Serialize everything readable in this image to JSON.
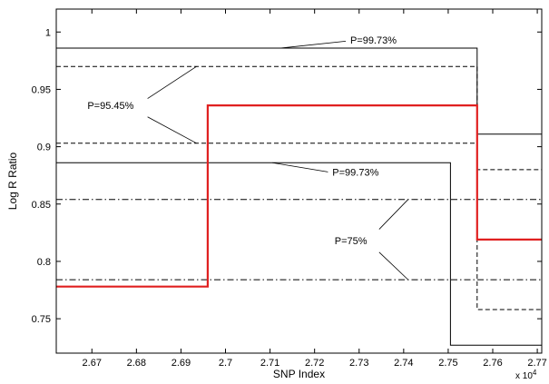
{
  "chart_data": {
    "type": "line",
    "title": "",
    "xlabel": "SNP Index",
    "ylabel": "Log R Ratio",
    "x_multiplier_label": "x 10",
    "x_multiplier_exponent": "4",
    "xlim": [
      26620,
      27710
    ],
    "ylim": [
      0.72,
      1.02
    ],
    "x_ticks": [
      26700,
      26800,
      26900,
      27000,
      27100,
      27200,
      27300,
      27400,
      27500,
      27600,
      27700
    ],
    "x_tick_labels": [
      "2.67",
      "2.68",
      "2.69",
      "2.7",
      "2.71",
      "2.72",
      "2.73",
      "2.74",
      "2.75",
      "2.76",
      "2.77"
    ],
    "y_ticks": [
      0.75,
      0.8,
      0.85,
      0.9,
      0.95,
      1.0
    ],
    "y_tick_labels": [
      "0.75",
      "0.8",
      "0.85",
      "0.9",
      "0.95",
      "1"
    ],
    "grid": false,
    "series": [
      {
        "style": "thick-red",
        "color": "#e02020",
        "points": [
          [
            26620,
            0.778
          ],
          [
            26960,
            0.778
          ],
          [
            26960,
            0.936
          ],
          [
            27565,
            0.936
          ],
          [
            27565,
            0.819
          ],
          [
            27710,
            0.819
          ]
        ]
      },
      {
        "style": "solid",
        "color": "#000000",
        "points": [
          [
            26620,
            0.986
          ],
          [
            27565,
            0.986
          ],
          [
            27565,
            0.911
          ],
          [
            27710,
            0.911
          ]
        ]
      },
      {
        "style": "dashed",
        "color": "#000000",
        "points": [
          [
            26620,
            0.97
          ],
          [
            27565,
            0.97
          ],
          [
            27565,
            0.88
          ],
          [
            27710,
            0.88
          ]
        ]
      },
      {
        "style": "dashed",
        "color": "#000000",
        "points": [
          [
            26620,
            0.903
          ],
          [
            27565,
            0.903
          ],
          [
            27565,
            0.758
          ],
          [
            27710,
            0.758
          ]
        ]
      },
      {
        "style": "solid",
        "color": "#000000",
        "points": [
          [
            26620,
            0.886
          ],
          [
            27505,
            0.886
          ],
          [
            27505,
            0.727
          ],
          [
            27710,
            0.727
          ]
        ]
      },
      {
        "style": "dashdot",
        "color": "#000000",
        "points": [
          [
            26620,
            0.854
          ],
          [
            27710,
            0.854
          ]
        ]
      },
      {
        "style": "dashdot",
        "color": "#000000",
        "points": [
          [
            26620,
            0.784
          ],
          [
            27710,
            0.784
          ]
        ]
      }
    ],
    "annotations": [
      {
        "text": "P=99.73%",
        "text_x": 27280,
        "text_y": 0.993,
        "anchor": "start",
        "lines": [
          [
            [
              27270,
              0.992
            ],
            [
              27125,
              0.986
            ]
          ]
        ]
      },
      {
        "text": "P=95.45%",
        "text_x": 26690,
        "text_y": 0.936,
        "anchor": "start",
        "lines": [
          [
            [
              26825,
              0.942
            ],
            [
              26935,
              0.97
            ]
          ],
          [
            [
              26825,
              0.926
            ],
            [
              26935,
              0.903
            ]
          ]
        ]
      },
      {
        "text": "P=99.73%",
        "text_x": 27240,
        "text_y": 0.878,
        "anchor": "start",
        "lines": [
          [
            [
              27230,
              0.878
            ],
            [
              27105,
              0.886
            ]
          ]
        ]
      },
      {
        "text": "P=75%",
        "text_x": 27245,
        "text_y": 0.818,
        "anchor": "start",
        "lines": [
          [
            [
              27345,
              0.828
            ],
            [
              27410,
              0.854
            ]
          ],
          [
            [
              27345,
              0.808
            ],
            [
              27410,
              0.784
            ]
          ]
        ]
      }
    ]
  }
}
